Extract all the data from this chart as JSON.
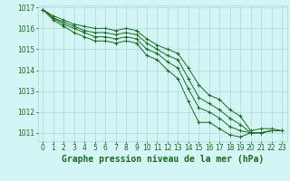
{
  "xlabel": "Graphe pression niveau de la mer (hPa)",
  "bg_color": "#d4f5f5",
  "grid_color": "#b0dede",
  "line_color": "#1a6b1a",
  "marker": "+",
  "hours": [
    0,
    1,
    2,
    3,
    4,
    5,
    6,
    7,
    8,
    9,
    10,
    11,
    12,
    13,
    14,
    15,
    16,
    17,
    18,
    19,
    20,
    21,
    22,
    23
  ],
  "series": [
    [
      1016.9,
      1016.6,
      1016.4,
      1016.2,
      1016.1,
      1016.0,
      1016.0,
      1015.9,
      1016.0,
      1015.9,
      1015.5,
      1015.2,
      1015.0,
      1014.8,
      1014.1,
      1013.3,
      1012.8,
      1012.6,
      1012.1,
      1011.8,
      1011.1,
      1011.2,
      1011.2,
      1011.1
    ],
    [
      1016.9,
      1016.5,
      1016.3,
      1016.1,
      1015.9,
      1015.8,
      1015.8,
      1015.7,
      1015.8,
      1015.7,
      1015.3,
      1015.0,
      1014.7,
      1014.5,
      1013.6,
      1012.7,
      1012.4,
      1012.1,
      1011.7,
      1011.4,
      1011.0,
      1011.0,
      1011.1,
      1011.1
    ],
    [
      1016.9,
      1016.5,
      1016.2,
      1016.0,
      1015.8,
      1015.6,
      1015.6,
      1015.5,
      1015.6,
      1015.5,
      1015.0,
      1014.8,
      1014.4,
      1014.1,
      1013.1,
      1012.2,
      1012.0,
      1011.7,
      1011.3,
      1011.1,
      1011.0,
      1011.0,
      1011.1,
      1011.1
    ],
    [
      1016.9,
      1016.4,
      1016.1,
      1015.8,
      1015.6,
      1015.4,
      1015.4,
      1015.3,
      1015.4,
      1015.3,
      1014.7,
      1014.5,
      1014.0,
      1013.6,
      1012.5,
      1011.5,
      1011.5,
      1011.2,
      1010.9,
      1010.8,
      1011.0,
      1011.0,
      1011.1,
      1011.1
    ]
  ],
  "ylim": [
    1010.6,
    1017.1
  ],
  "yticks": [
    1011,
    1012,
    1013,
    1014,
    1015,
    1016,
    1017
  ],
  "xlim": [
    -0.5,
    23.5
  ],
  "tick_fontsize": 5.5,
  "label_fontsize": 7.0,
  "fig_width": 3.2,
  "fig_height": 2.0,
  "dpi": 100
}
